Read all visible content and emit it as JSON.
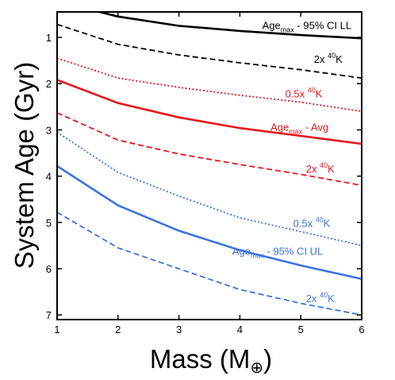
{
  "chart_data": {
    "type": "line",
    "xlabel": "Mass (M",
    "xlabel_symbol": "⊕",
    "xlabel_close": ")",
    "ylabel": "System Age (Gyr)",
    "xlim": [
      1,
      6
    ],
    "ylim": [
      7.1,
      0.45
    ],
    "y_inverted": true,
    "grid": false,
    "legend": "none",
    "x_ticks": [
      1,
      2,
      3,
      4,
      5,
      6
    ],
    "y_ticks": [
      1,
      2,
      3,
      4,
      5,
      6,
      7
    ],
    "series": [
      {
        "style": "solid",
        "color": "#000000",
        "x": [
          1.6,
          2,
          3,
          4,
          5,
          6
        ],
        "y": [
          0.42,
          0.55,
          0.75,
          0.86,
          0.95,
          1.02
        ]
      },
      {
        "style": "dashed",
        "color": "#000000",
        "x": [
          1,
          2,
          3,
          4,
          5,
          6
        ],
        "y": [
          0.72,
          1.15,
          1.38,
          1.55,
          1.7,
          1.88
        ]
      },
      {
        "style": "dotted",
        "color": "#e8151c",
        "x": [
          1,
          2,
          3,
          4,
          5,
          6
        ],
        "y": [
          1.45,
          1.88,
          2.08,
          2.25,
          2.4,
          2.6
        ]
      },
      {
        "style": "solid",
        "color": "#e8151c",
        "x": [
          1,
          2,
          3,
          4,
          5,
          6
        ],
        "y": [
          1.92,
          2.42,
          2.73,
          2.96,
          3.13,
          3.3
        ]
      },
      {
        "style": "dashed",
        "color": "#e8151c",
        "x": [
          1,
          2,
          3,
          4,
          5,
          6
        ],
        "y": [
          2.63,
          3.22,
          3.52,
          3.75,
          3.96,
          4.2
        ]
      },
      {
        "style": "dotted",
        "color": "#3b73dd",
        "x": [
          1,
          2,
          3,
          4,
          5,
          6
        ],
        "y": [
          3.05,
          3.92,
          4.43,
          4.9,
          5.2,
          5.5
        ]
      },
      {
        "style": "solid",
        "color": "#3b73dd",
        "x": [
          1,
          2,
          3,
          4,
          5,
          6
        ],
        "y": [
          3.78,
          4.63,
          5.18,
          5.6,
          5.93,
          6.22
        ]
      },
      {
        "style": "dashed",
        "color": "#3b73dd",
        "x": [
          1,
          2,
          3,
          4,
          5,
          6
        ],
        "y": [
          4.78,
          5.55,
          6.0,
          6.45,
          6.75,
          7.0
        ]
      }
    ],
    "annotations": [
      {
        "color": "#000000",
        "x": 5.1,
        "y": 0.82,
        "parts": [
          {
            "t": "Age"
          },
          {
            "t": "max",
            "sub": true
          },
          {
            "t": " - 95% CI LL"
          }
        ]
      },
      {
        "color": "#000000",
        "x": 5.45,
        "y": 1.55,
        "parts": [
          {
            "t": "2x "
          },
          {
            "t": "40",
            "sup": true
          },
          {
            "t": "K"
          }
        ]
      },
      {
        "color": "#e8151c",
        "x": 5.05,
        "y": 2.3,
        "parts": [
          {
            "t": "0.5x "
          },
          {
            "t": "40",
            "sup": true
          },
          {
            "t": "K"
          }
        ]
      },
      {
        "color": "#e8151c",
        "x": 4.98,
        "y": 3.02,
        "parts": [
          {
            "t": "Age"
          },
          {
            "t": "max",
            "sub": true
          },
          {
            "t": " - Avg"
          }
        ]
      },
      {
        "color": "#e8151c",
        "x": 5.32,
        "y": 3.92,
        "parts": [
          {
            "t": "2x "
          },
          {
            "t": "40",
            "sup": true
          },
          {
            "t": "K"
          }
        ]
      },
      {
        "color": "#3b73dd",
        "x": 5.18,
        "y": 5.1,
        "parts": [
          {
            "t": "0.5x "
          },
          {
            "t": "40",
            "sup": true
          },
          {
            "t": "K"
          }
        ]
      },
      {
        "color": "#3b73dd",
        "x": 4.62,
        "y": 5.7,
        "parts": [
          {
            "t": "Age"
          },
          {
            "t": "max",
            "sub": true
          },
          {
            "t": " - 95% CI UL"
          }
        ]
      },
      {
        "color": "#3b73dd",
        "x": 5.32,
        "y": 6.72,
        "parts": [
          {
            "t": "2x "
          },
          {
            "t": "40",
            "sup": true
          },
          {
            "t": "K"
          }
        ]
      }
    ]
  }
}
